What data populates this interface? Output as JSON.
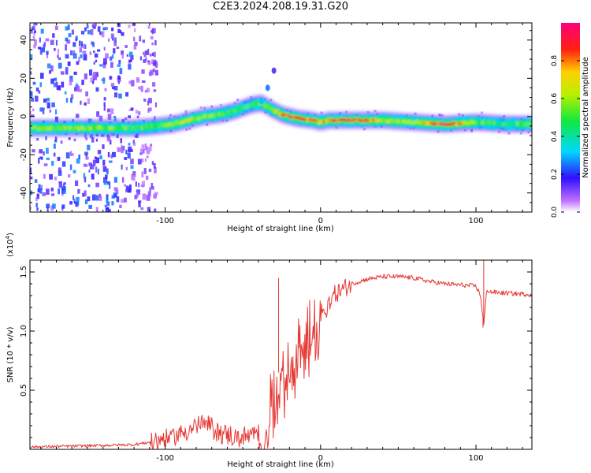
{
  "figure_title": "C2E3.2024.208.19.31.G20",
  "chart_data": [
    {
      "type": "heatmap",
      "title": "C2E3.2024.208.19.31.G20",
      "xlabel": "Height of straight line (km)",
      "ylabel": "Frequency (Hz)",
      "xlim": [
        -187,
        136
      ],
      "ylim": [
        -50,
        49
      ],
      "xticks": [
        -100,
        0,
        100
      ],
      "yticks": [
        -40,
        -20,
        0,
        20,
        40
      ],
      "xtick_labels": [
        "-100",
        "0",
        "100"
      ],
      "ytick_labels": [
        "-40",
        "-20",
        "0",
        "20",
        "40"
      ],
      "colorbar": {
        "label": "Normalized spectral amplitude",
        "range": [
          0.0,
          1.0
        ],
        "ticks": [
          0.0,
          0.2,
          0.4,
          0.6,
          0.8
        ],
        "tick_labels": [
          "0.0",
          "0.2",
          "0.4",
          "0.6",
          "0.8"
        ]
      },
      "ridge": {
        "x": [
          -187,
          -150,
          -120,
          -105,
          -95,
          -85,
          -75,
          -65,
          -55,
          -45,
          -38,
          -32,
          -25,
          -15,
          -5,
          0,
          5,
          20,
          40,
          60,
          80,
          100,
          120,
          136
        ],
        "y": [
          -6,
          -6,
          -6,
          -5,
          -4,
          -2,
          0,
          1,
          3,
          6,
          7,
          4,
          1,
          -1,
          -2,
          -3,
          -2,
          -2,
          -2,
          -3,
          -4,
          -3,
          -4,
          -4
        ],
        "amplitude": [
          0.55,
          0.55,
          0.5,
          0.5,
          0.55,
          0.6,
          0.55,
          0.5,
          0.5,
          0.45,
          0.5,
          0.6,
          0.8,
          0.85,
          0.8,
          0.7,
          0.85,
          0.9,
          0.6,
          0.55,
          0.9,
          0.5,
          0.45,
          0.55
        ]
      },
      "branch": {
        "x": [
          -38,
          -34,
          -30
        ],
        "y": [
          8,
          15,
          24
        ],
        "amplitude": [
          0.3,
          0.25,
          0.15
        ]
      }
    },
    {
      "type": "line",
      "xlabel": "Height of straight line (km)",
      "ylabel": "SNR (10 * v/v)",
      "y_scale_label": "(x10",
      "y_scale_exponent": "4",
      "y_scale_close": ")",
      "xlim": [
        -187,
        136
      ],
      "ylim": [
        0,
        1.6
      ],
      "xticks": [
        -100,
        0,
        100
      ],
      "yticks": [
        0.5,
        1.0,
        1.5
      ],
      "xtick_labels": [
        "-100",
        "0",
        "100"
      ],
      "ytick_labels": [
        "0.5",
        "1.0",
        "1.5"
      ],
      "series": [
        {
          "name": "SNR",
          "color": "#e53935",
          "x": [
            -187,
            -150,
            -120,
            -110,
            -100,
            -95,
            -85,
            -80,
            -75,
            -70,
            -65,
            -60,
            -55,
            -50,
            -45,
            -40,
            -35,
            -32,
            -28,
            -25,
            -22,
            -18,
            -15,
            -10,
            -5,
            0,
            5,
            10,
            20,
            30,
            40,
            50,
            60,
            70,
            80,
            90,
            100,
            103,
            105,
            107,
            110,
            120,
            136
          ],
          "y": [
            0.02,
            0.03,
            0.04,
            0.06,
            0.09,
            0.11,
            0.16,
            0.2,
            0.22,
            0.18,
            0.15,
            0.12,
            0.1,
            0.1,
            0.11,
            0.12,
            0.18,
            0.4,
            0.6,
            0.75,
            0.7,
            0.8,
            0.9,
            1.0,
            1.1,
            1.18,
            1.25,
            1.32,
            1.4,
            1.44,
            1.46,
            1.46,
            1.45,
            1.42,
            1.4,
            1.39,
            1.38,
            1.3,
            1.05,
            1.35,
            1.33,
            1.32,
            1.31
          ]
        }
      ],
      "spikes": [
        {
          "x": -27,
          "y": 1.45
        },
        {
          "x": 105,
          "y": 1.6
        },
        {
          "x": 104.5,
          "y": 1.03
        }
      ]
    }
  ]
}
